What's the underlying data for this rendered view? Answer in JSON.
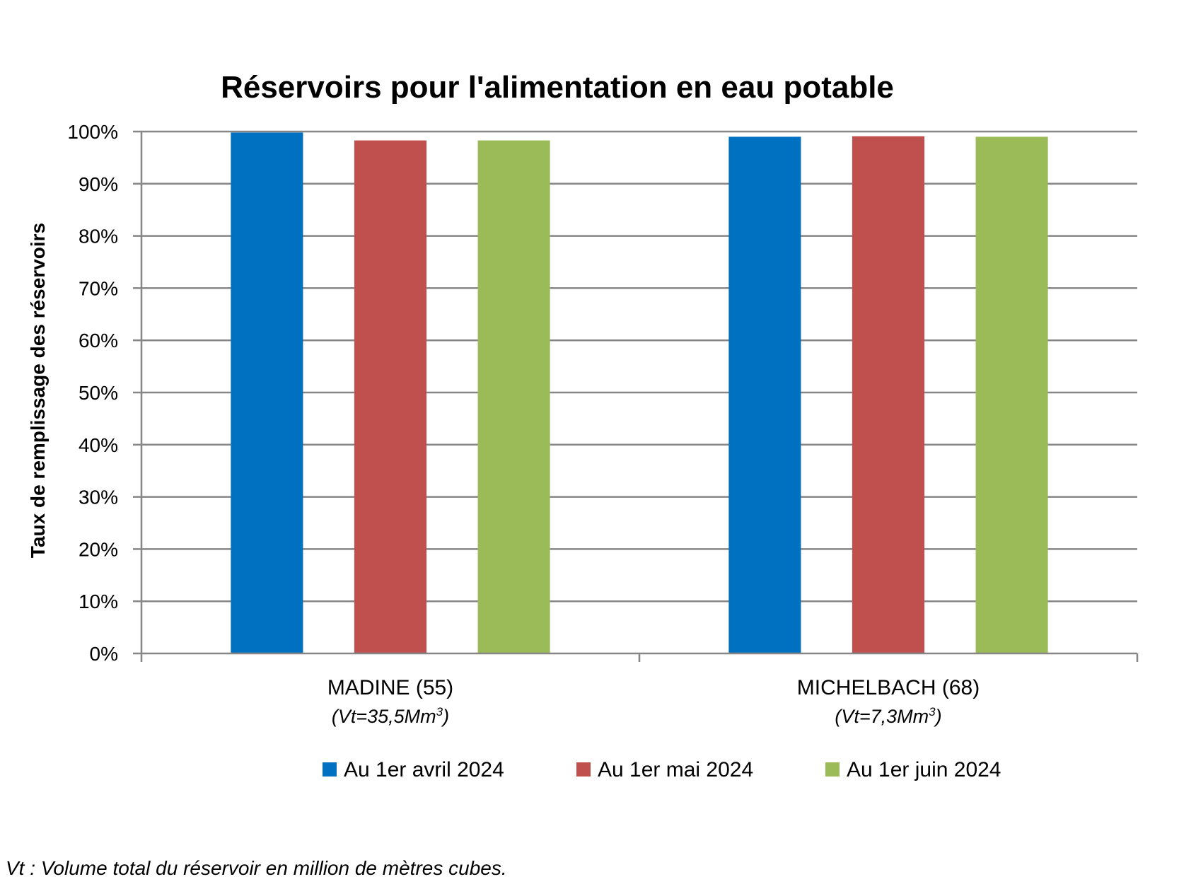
{
  "chart_data": {
    "type": "bar",
    "title": "Réservoirs pour l'alimentation en eau potable",
    "ylabel": "Taux de remplissage des réservoirs",
    "xlabel": "",
    "ylim": [
      0,
      100
    ],
    "yticks": [
      "0%",
      "10%",
      "20%",
      "30%",
      "40%",
      "50%",
      "60%",
      "70%",
      "80%",
      "90%",
      "100%"
    ],
    "grid": true,
    "legend_position": "bottom",
    "categories": [
      {
        "name": "MADINE (55)",
        "volume_prefix": "(Vt=35,5Mm",
        "volume_sup": "3",
        "volume_suffix": ")"
      },
      {
        "name": "MICHELBACH (68)",
        "volume_prefix": "(Vt=7,3Mm",
        "volume_sup": "3",
        "volume_suffix": ")"
      }
    ],
    "series": [
      {
        "name": "Au 1er avril 2024",
        "color": "#0070C0",
        "values": [
          99.8,
          99.0
        ]
      },
      {
        "name": "Au 1er mai 2024",
        "color": "#C0504D",
        "values": [
          98.3,
          99.1
        ]
      },
      {
        "name": "Au 1er juin 2024",
        "color": "#9BBB59",
        "values": [
          98.3,
          99.0
        ]
      }
    ]
  },
  "footnote": "Vt : Volume total du réservoir en million de mètres cubes."
}
